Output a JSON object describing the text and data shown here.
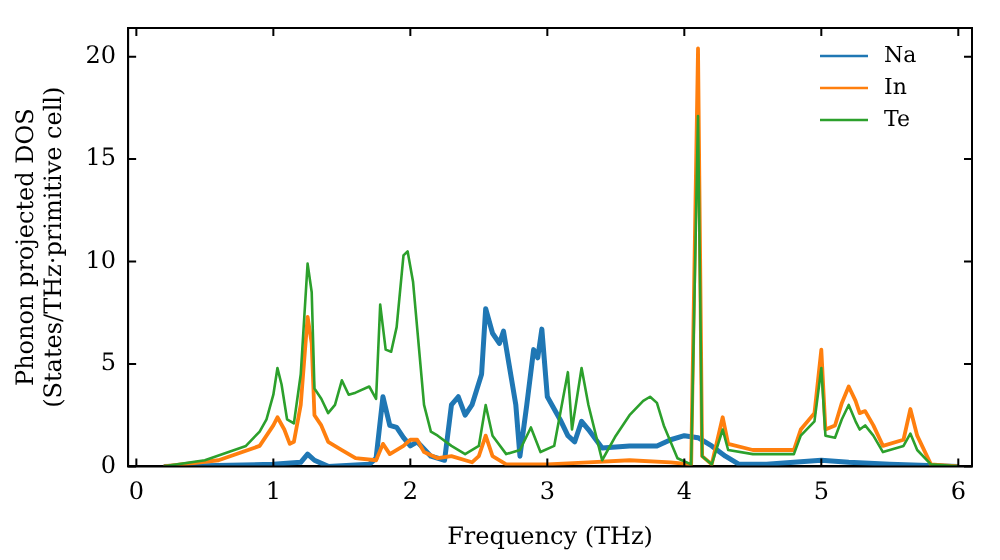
{
  "chart_data": {
    "type": "line",
    "xlabel": "Frequency (THz)",
    "ylabel": "Phonon projected DOS\n(States/THz·primitive cell)",
    "xlim": [
      -0.06,
      6.1
    ],
    "ylim": [
      0,
      21.4
    ],
    "xticks": [
      0,
      1,
      2,
      3,
      4,
      5,
      6
    ],
    "yticks": [
      0,
      5,
      10,
      15,
      20
    ],
    "grid": false,
    "legend": "top right",
    "marker": "none",
    "line_style": "solid",
    "series": [
      {
        "name": "Na",
        "color": "#1f77b4",
        "x": [
          0.2,
          1.0,
          1.2,
          1.25,
          1.3,
          1.4,
          1.7,
          1.75,
          1.8,
          1.85,
          1.9,
          1.95,
          2.0,
          2.05,
          2.15,
          2.25,
          2.3,
          2.35,
          2.4,
          2.45,
          2.52,
          2.55,
          2.6,
          2.65,
          2.68,
          2.72,
          2.77,
          2.8,
          2.85,
          2.9,
          2.93,
          2.96,
          3.0,
          3.05,
          3.1,
          3.15,
          3.2,
          3.25,
          3.3,
          3.4,
          3.6,
          3.8,
          3.9,
          4.0,
          4.1,
          4.2,
          4.3,
          4.4,
          4.6,
          5.0,
          5.2,
          5.5,
          6.0
        ],
        "values": [
          0,
          0.1,
          0.2,
          0.6,
          0.3,
          0,
          0.1,
          0.4,
          3.4,
          2.0,
          1.9,
          1.4,
          1.0,
          1.2,
          0.5,
          0.3,
          3.0,
          3.4,
          2.5,
          3.0,
          4.5,
          7.7,
          6.5,
          6.0,
          6.6,
          5.0,
          3.0,
          0.5,
          3.0,
          5.7,
          5.3,
          6.7,
          3.4,
          2.8,
          2.2,
          1.5,
          1.2,
          2.2,
          1.8,
          0.9,
          1.0,
          1.0,
          1.3,
          1.5,
          1.4,
          1.0,
          0.5,
          0.1,
          0.1,
          0.3,
          0.2,
          0.1,
          0
        ]
      },
      {
        "name": "In",
        "color": "#ff7f0e",
        "x": [
          0.2,
          0.6,
          0.9,
          1.0,
          1.03,
          1.08,
          1.12,
          1.15,
          1.2,
          1.25,
          1.28,
          1.3,
          1.35,
          1.4,
          1.5,
          1.6,
          1.75,
          1.8,
          1.85,
          1.95,
          2.0,
          2.05,
          2.1,
          2.2,
          2.3,
          2.45,
          2.5,
          2.55,
          2.6,
          2.7,
          3.0,
          3.3,
          3.6,
          3.9,
          4.05,
          4.1,
          4.13,
          4.2,
          4.28,
          4.32,
          4.5,
          4.8,
          4.85,
          4.95,
          5.0,
          5.03,
          5.1,
          5.15,
          5.2,
          5.25,
          5.28,
          5.32,
          5.38,
          5.45,
          5.6,
          5.65,
          5.7,
          5.8,
          6.0
        ],
        "values": [
          0,
          0.3,
          1.0,
          2.0,
          2.4,
          1.8,
          1.1,
          1.2,
          3.0,
          7.3,
          6.0,
          2.5,
          2.0,
          1.2,
          0.8,
          0.4,
          0.3,
          1.1,
          0.6,
          1.0,
          1.3,
          1.3,
          0.7,
          0.4,
          0.5,
          0.2,
          0.5,
          1.5,
          0.5,
          0.1,
          0.1,
          0.2,
          0.3,
          0.2,
          0.1,
          20.4,
          0.5,
          0.1,
          2.4,
          1.1,
          0.8,
          0.8,
          1.8,
          2.6,
          5.7,
          1.8,
          2.0,
          3.1,
          3.9,
          3.2,
          2.6,
          2.7,
          2.0,
          1.0,
          1.3,
          2.8,
          1.5,
          0.1,
          0
        ]
      },
      {
        "name": "Te",
        "color": "#2ca02c",
        "x": [
          0.2,
          0.5,
          0.8,
          0.9,
          0.95,
          1.0,
          1.03,
          1.06,
          1.1,
          1.15,
          1.2,
          1.25,
          1.28,
          1.3,
          1.35,
          1.4,
          1.45,
          1.5,
          1.55,
          1.6,
          1.7,
          1.75,
          1.78,
          1.82,
          1.86,
          1.9,
          1.95,
          1.98,
          2.02,
          2.1,
          2.15,
          2.2,
          2.3,
          2.4,
          2.5,
          2.55,
          2.6,
          2.7,
          2.8,
          2.88,
          2.95,
          3.05,
          3.15,
          3.18,
          3.25,
          3.3,
          3.4,
          3.5,
          3.6,
          3.7,
          3.75,
          3.8,
          3.85,
          3.95,
          4.05,
          4.1,
          4.13,
          4.2,
          4.28,
          4.32,
          4.5,
          4.8,
          4.85,
          4.95,
          5.0,
          5.03,
          5.1,
          5.15,
          5.2,
          5.25,
          5.28,
          5.32,
          5.38,
          5.45,
          5.6,
          5.65,
          5.7,
          5.8,
          6.0
        ],
        "values": [
          0,
          0.3,
          1.0,
          1.7,
          2.3,
          3.5,
          4.8,
          4.0,
          2.3,
          2.1,
          4.5,
          9.9,
          8.5,
          3.8,
          3.3,
          2.6,
          3.0,
          4.2,
          3.5,
          3.6,
          3.9,
          3.3,
          7.9,
          5.7,
          5.6,
          6.8,
          10.3,
          10.5,
          9.0,
          3.0,
          1.7,
          1.5,
          1.0,
          0.6,
          1.0,
          3.0,
          1.5,
          0.6,
          0.8,
          1.9,
          0.7,
          1.0,
          4.6,
          1.8,
          4.8,
          3.0,
          0.3,
          1.5,
          2.5,
          3.2,
          3.4,
          3.1,
          2.0,
          0.4,
          0.1,
          17.1,
          0.5,
          0.1,
          1.8,
          0.8,
          0.6,
          0.6,
          1.5,
          2.2,
          4.8,
          1.5,
          1.4,
          2.3,
          3.0,
          2.2,
          1.8,
          2.0,
          1.5,
          0.7,
          1.0,
          1.6,
          0.8,
          0.1,
          0
        ]
      }
    ]
  }
}
